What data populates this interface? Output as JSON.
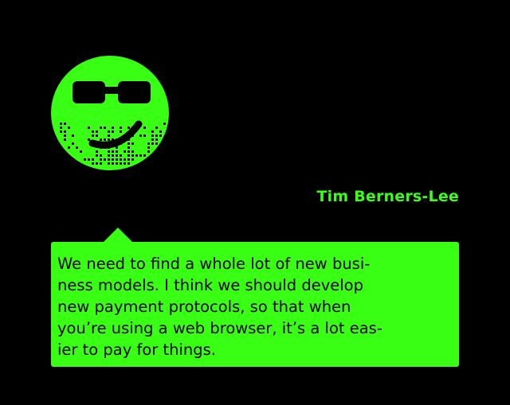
{
  "avatar": {
    "icon": "smiley-face-with-sunglasses-icon",
    "color": "#39ff14"
  },
  "author": {
    "name": "Tim Berners-Lee"
  },
  "quote": {
    "lines": [
      "We need to find a whole lot of new busi-",
      "ness models. I think we should develop",
      "new payment protocols, so that when",
      "you’re using a web browser, it’s a lot eas-",
      "ier to pay for things."
    ]
  },
  "colors": {
    "background": "#000000",
    "accent": "#39ff14",
    "text_on_accent": "#000000"
  }
}
